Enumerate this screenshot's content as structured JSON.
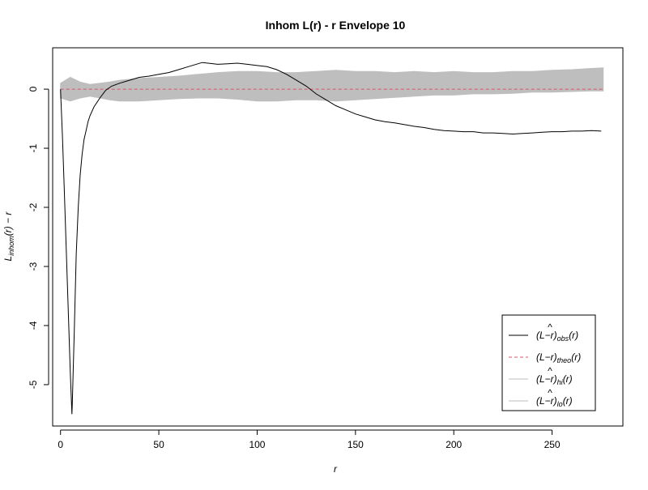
{
  "chart_data": {
    "type": "line",
    "title": "Inhom L(r) - r Envelope 10",
    "xlabel": "r",
    "ylabel": "L_{inhom}(r) − r",
    "xlim": [
      -4,
      286
    ],
    "ylim": [
      -5.7,
      0.7
    ],
    "xticks": [
      0,
      50,
      100,
      150,
      200,
      250
    ],
    "yticks": [
      0,
      -1,
      -2,
      -3,
      -4,
      -5
    ],
    "grid": false,
    "legend_position": "bottom-right",
    "colors": {
      "obs": "#000000",
      "theo": "#DF536B",
      "envelope": "#BEBEBE"
    },
    "series": [
      {
        "name": "(L̂−r)obs(r)",
        "key": "obs",
        "x": [
          0,
          1,
          2,
          3,
          4,
          5,
          5.8,
          6,
          7,
          8,
          9,
          10,
          11,
          12,
          13,
          14,
          15,
          17,
          20,
          23,
          26,
          30,
          35,
          40,
          45,
          50,
          55,
          60,
          65,
          70,
          72,
          75,
          80,
          85,
          90,
          95,
          100,
          105,
          110,
          115,
          120,
          125,
          130,
          135,
          140,
          145,
          150,
          155,
          160,
          165,
          170,
          175,
          180,
          185,
          190,
          195,
          200,
          205,
          210,
          215,
          220,
          225,
          230,
          235,
          240,
          245,
          250,
          255,
          260,
          265,
          270,
          275
        ],
        "y": [
          0,
          -0.8,
          -1.8,
          -2.8,
          -3.8,
          -4.8,
          -5.5,
          -5.3,
          -4.1,
          -2.8,
          -2.0,
          -1.45,
          -1.1,
          -0.85,
          -0.7,
          -0.55,
          -0.45,
          -0.3,
          -0.15,
          -0.02,
          0.05,
          0.1,
          0.15,
          0.2,
          0.22,
          0.25,
          0.28,
          0.33,
          0.38,
          0.43,
          0.45,
          0.44,
          0.42,
          0.43,
          0.44,
          0.42,
          0.4,
          0.38,
          0.33,
          0.25,
          0.15,
          0.05,
          -0.08,
          -0.18,
          -0.28,
          -0.35,
          -0.42,
          -0.47,
          -0.52,
          -0.55,
          -0.57,
          -0.6,
          -0.63,
          -0.65,
          -0.68,
          -0.7,
          -0.71,
          -0.72,
          -0.72,
          -0.74,
          -0.74,
          -0.75,
          -0.76,
          -0.75,
          -0.74,
          -0.73,
          -0.72,
          -0.72,
          -0.71,
          -0.71,
          -0.7,
          -0.71
        ]
      },
      {
        "name": "(L−r)theo(r)",
        "key": "theo",
        "x": [
          0,
          276
        ],
        "y": [
          0,
          0
        ]
      },
      {
        "name": "(L̂−r)hi(r)",
        "key": "hi",
        "x": [
          0,
          5,
          10,
          15,
          20,
          25,
          30,
          40,
          50,
          60,
          70,
          80,
          90,
          100,
          110,
          120,
          130,
          140,
          150,
          160,
          170,
          180,
          190,
          200,
          210,
          220,
          230,
          240,
          250,
          260,
          270,
          276
        ],
        "y": [
          0.1,
          0.2,
          0.12,
          0.08,
          0.1,
          0.12,
          0.15,
          0.18,
          0.2,
          0.22,
          0.25,
          0.28,
          0.3,
          0.3,
          0.28,
          0.28,
          0.3,
          0.32,
          0.3,
          0.3,
          0.28,
          0.3,
          0.28,
          0.3,
          0.28,
          0.28,
          0.3,
          0.3,
          0.32,
          0.33,
          0.35,
          0.36
        ]
      },
      {
        "name": "(L̂−r)lo(r)",
        "key": "lo",
        "x": [
          0,
          5,
          10,
          15,
          20,
          25,
          30,
          40,
          50,
          60,
          70,
          80,
          90,
          100,
          110,
          120,
          130,
          140,
          150,
          160,
          170,
          180,
          190,
          200,
          210,
          220,
          230,
          240,
          250,
          260,
          270,
          276
        ],
        "y": [
          -0.15,
          -0.2,
          -0.15,
          -0.12,
          -0.15,
          -0.18,
          -0.2,
          -0.2,
          -0.18,
          -0.16,
          -0.15,
          -0.15,
          -0.17,
          -0.2,
          -0.2,
          -0.18,
          -0.18,
          -0.2,
          -0.18,
          -0.16,
          -0.14,
          -0.12,
          -0.1,
          -0.1,
          -0.08,
          -0.08,
          -0.07,
          -0.05,
          -0.05,
          -0.04,
          -0.03,
          -0.03
        ]
      }
    ]
  },
  "legend": {
    "obs": {
      "base": "(L",
      "hat": "^",
      "mid": "−r)",
      "sub": "obs",
      "tail": "(r)"
    },
    "theo": {
      "base": "(L",
      "hat": "",
      "mid": "−r)",
      "sub": "theo",
      "tail": "(r)"
    },
    "hi": {
      "base": "(L",
      "hat": "^",
      "mid": "−r)",
      "sub": "hi",
      "tail": "(r)"
    },
    "lo": {
      "base": "(L",
      "hat": "^",
      "mid": "−r)",
      "sub": "lo",
      "tail": "(r)"
    }
  },
  "ylabel_parts": {
    "main": "L",
    "sub": "inhom",
    "tail": "(r) − r"
  }
}
